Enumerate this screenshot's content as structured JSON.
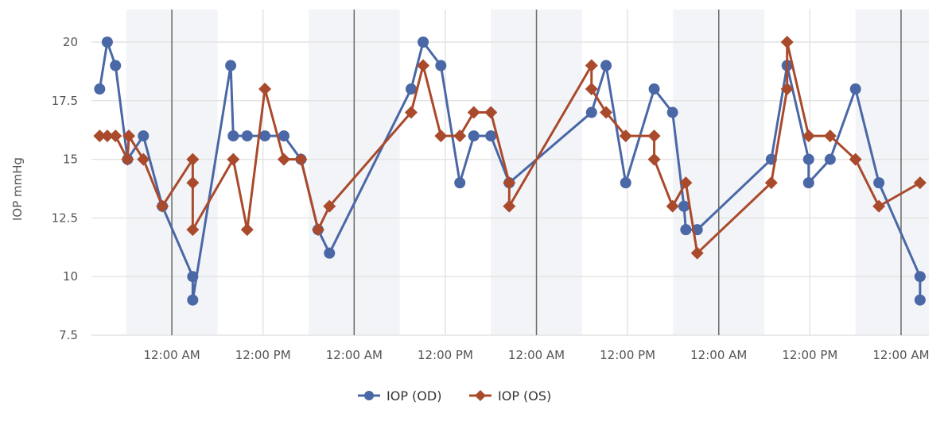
{
  "chart_data": {
    "type": "line",
    "title": "",
    "xlabel": "",
    "ylabel": "IOP mmHg",
    "ylim": [
      7.5,
      20
    ],
    "yticks": [
      "7.5",
      "10",
      "12.5",
      "15",
      "17.5",
      "20"
    ],
    "xlim": [
      "D1 13:25",
      "D6 03:40"
    ],
    "xticks": [
      {
        "at": "D2 00:00",
        "label": "12:00 AM"
      },
      {
        "at": "D2 12:00",
        "label": "12:00 PM"
      },
      {
        "at": "D3 00:00",
        "label": "12:00 AM"
      },
      {
        "at": "D3 12:00",
        "label": "12:00 PM"
      },
      {
        "at": "D4 00:00",
        "label": "12:00 AM"
      },
      {
        "at": "D4 12:00",
        "label": "12:00 PM"
      },
      {
        "at": "D5 00:00",
        "label": "12:00 AM"
      },
      {
        "at": "D5 12:00",
        "label": "12:00 PM"
      },
      {
        "at": "D6 00:00",
        "label": "12:00 AM"
      }
    ],
    "night_bands": "18:00-06:00 shaded",
    "grid": true,
    "legend": "bottom-center",
    "series": [
      {
        "name": "IOP (OD)",
        "color": "#4a67a6",
        "marker": "circle",
        "points": [
          [
            "D1 14:30",
            18
          ],
          [
            "D1 15:30",
            20
          ],
          [
            "D1 16:35",
            19
          ],
          [
            "D1 18:10",
            15
          ],
          [
            "D1 20:15",
            16
          ],
          [
            "D1 22:45",
            13
          ],
          [
            "D2 02:45",
            10
          ],
          [
            "D2 02:45",
            9
          ],
          [
            "D2 07:45",
            19
          ],
          [
            "D2 08:05",
            16
          ],
          [
            "D2 09:55",
            16
          ],
          [
            "D2 12:15",
            16
          ],
          [
            "D2 14:45",
            16
          ],
          [
            "D2 17:00",
            15
          ],
          [
            "D2 19:15",
            12
          ],
          [
            "D2 20:45",
            11
          ],
          [
            "D3 07:30",
            18
          ],
          [
            "D3 09:05",
            20
          ],
          [
            "D3 11:25",
            19
          ],
          [
            "D3 13:55",
            14
          ],
          [
            "D3 15:45",
            16
          ],
          [
            "D3 18:00",
            16
          ],
          [
            "D3 20:25",
            14
          ],
          [
            "D4 07:15",
            17
          ],
          [
            "D4 09:10",
            19
          ],
          [
            "D4 11:45",
            14
          ],
          [
            "D4 15:30",
            18
          ],
          [
            "D4 17:55",
            17
          ],
          [
            "D4 19:25",
            13
          ],
          [
            "D4 19:40",
            12
          ],
          [
            "D4 21:10",
            12
          ],
          [
            "D5 06:55",
            15
          ],
          [
            "D5 09:00",
            19
          ],
          [
            "D5 11:50",
            15
          ],
          [
            "D5 11:50",
            14
          ],
          [
            "D5 14:40",
            15
          ],
          [
            "D5 18:00",
            18
          ],
          [
            "D5 21:05",
            14
          ],
          [
            "D6 02:30",
            10
          ],
          [
            "D6 02:30",
            9
          ]
        ]
      },
      {
        "name": "IOP (OS)",
        "color": "#aa4a2c",
        "marker": "diamond",
        "points": [
          [
            "D1 14:30",
            16
          ],
          [
            "D1 15:30",
            16
          ],
          [
            "D1 16:35",
            16
          ],
          [
            "D1 18:10",
            15
          ],
          [
            "D1 18:20",
            16
          ],
          [
            "D1 20:15",
            15
          ],
          [
            "D1 22:45",
            13
          ],
          [
            "D2 02:45",
            15
          ],
          [
            "D2 02:45",
            14
          ],
          [
            "D2 02:45",
            12
          ],
          [
            "D2 08:05",
            15
          ],
          [
            "D2 09:55",
            12
          ],
          [
            "D2 12:15",
            18
          ],
          [
            "D2 14:45",
            15
          ],
          [
            "D2 17:00",
            15
          ],
          [
            "D2 19:15",
            12
          ],
          [
            "D2 20:45",
            13
          ],
          [
            "D3 07:30",
            17
          ],
          [
            "D3 09:05",
            19
          ],
          [
            "D3 11:25",
            16
          ],
          [
            "D3 13:55",
            16
          ],
          [
            "D3 15:45",
            17
          ],
          [
            "D3 18:00",
            17
          ],
          [
            "D3 20:25",
            14
          ],
          [
            "D3 20:25",
            13
          ],
          [
            "D4 07:15",
            19
          ],
          [
            "D4 07:15",
            18
          ],
          [
            "D4 09:10",
            17
          ],
          [
            "D4 11:45",
            16
          ],
          [
            "D4 15:30",
            16
          ],
          [
            "D4 15:30",
            15
          ],
          [
            "D4 17:55",
            13
          ],
          [
            "D4 19:40",
            14
          ],
          [
            "D4 21:10",
            11
          ],
          [
            "D5 06:55",
            14
          ],
          [
            "D5 09:00",
            18
          ],
          [
            "D5 09:00",
            20
          ],
          [
            "D5 11:50",
            16
          ],
          [
            "D5 14:40",
            16
          ],
          [
            "D5 18:00",
            15
          ],
          [
            "D5 21:05",
            13
          ],
          [
            "D6 02:30",
            14
          ]
        ]
      }
    ]
  }
}
